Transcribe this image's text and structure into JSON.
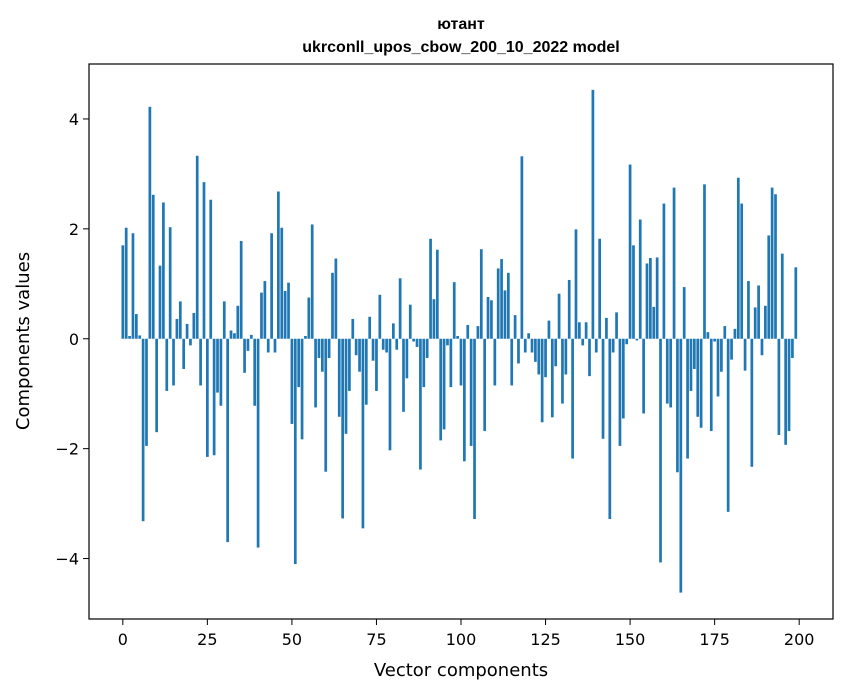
{
  "chart_data": {
    "type": "bar",
    "title": "ютант",
    "subtitle": "ukrconll_upos_cbow_200_10_2022 model",
    "xlabel": "Vector components",
    "ylabel": "Components values",
    "xlim": [
      -10,
      210
    ],
    "ylim": [
      -5.1,
      5
    ],
    "xticks": [
      0,
      25,
      50,
      75,
      100,
      125,
      150,
      175,
      200
    ],
    "yticks": [
      -4,
      -2,
      0,
      2,
      4
    ],
    "ytick_labels": [
      "−4",
      "−2",
      "0",
      "2",
      "4"
    ],
    "grid": false,
    "legend": "none",
    "bar_color": "#1f77b4",
    "x": [
      0,
      1,
      2,
      3,
      4,
      5,
      6,
      7,
      8,
      9,
      10,
      11,
      12,
      13,
      14,
      15,
      16,
      17,
      18,
      19,
      20,
      21,
      22,
      23,
      24,
      25,
      26,
      27,
      28,
      29,
      30,
      31,
      32,
      33,
      34,
      35,
      36,
      37,
      38,
      39,
      40,
      41,
      42,
      43,
      44,
      45,
      46,
      47,
      48,
      49,
      50,
      51,
      52,
      53,
      54,
      55,
      56,
      57,
      58,
      59,
      60,
      61,
      62,
      63,
      64,
      65,
      66,
      67,
      68,
      69,
      70,
      71,
      72,
      73,
      74,
      75,
      76,
      77,
      78,
      79,
      80,
      81,
      82,
      83,
      84,
      85,
      86,
      87,
      88,
      89,
      90,
      91,
      92,
      93,
      94,
      95,
      96,
      97,
      98,
      99,
      100,
      101,
      102,
      103,
      104,
      105,
      106,
      107,
      108,
      109,
      110,
      111,
      112,
      113,
      114,
      115,
      116,
      117,
      118,
      119,
      120,
      121,
      122,
      123,
      124,
      125,
      126,
      127,
      128,
      129,
      130,
      131,
      132,
      133,
      134,
      135,
      136,
      137,
      138,
      139,
      140,
      141,
      142,
      143,
      144,
      145,
      146,
      147,
      148,
      149,
      150,
      151,
      152,
      153,
      154,
      155,
      156,
      157,
      158,
      159,
      160,
      161,
      162,
      163,
      164,
      165,
      166,
      167,
      168,
      169,
      170,
      171,
      172,
      173,
      174,
      175,
      176,
      177,
      178,
      179,
      180,
      181,
      182,
      183,
      184,
      185,
      186,
      187,
      188,
      189,
      190,
      191,
      192,
      193,
      194,
      195,
      196,
      197,
      198,
      199
    ],
    "values": [
      1.7,
      2.02,
      0.05,
      1.92,
      0.45,
      0.06,
      -3.32,
      -1.95,
      4.22,
      2.62,
      -1.7,
      1.33,
      2.48,
      -0.95,
      2.03,
      -0.85,
      0.36,
      0.68,
      -0.55,
      0.27,
      -0.12,
      0.47,
      3.33,
      -0.85,
      2.85,
      -2.15,
      2.53,
      -2.12,
      -0.98,
      -1.22,
      0.68,
      -3.7,
      0.15,
      0.1,
      0.6,
      1.78,
      -0.62,
      -0.22,
      0.07,
      -1.22,
      -3.8,
      0.84,
      1.05,
      -0.25,
      1.92,
      -0.25,
      2.68,
      2.02,
      0.87,
      1.02,
      -1.55,
      -4.1,
      -0.88,
      -1.83,
      0.05,
      0.75,
      2.08,
      -1.25,
      -0.35,
      -0.6,
      -2.42,
      -0.35,
      1.2,
      1.46,
      -1.42,
      -3.27,
      -1.73,
      -0.95,
      0.36,
      -0.3,
      -0.6,
      -3.45,
      -1.2,
      0.4,
      -0.4,
      -0.95,
      0.8,
      -0.2,
      -0.25,
      -2.03,
      0.28,
      -0.2,
      1.1,
      -1.33,
      -0.72,
      0.62,
      -0.05,
      -0.15,
      -2.38,
      -0.88,
      -0.35,
      1.82,
      0.72,
      1.62,
      -1.85,
      -1.65,
      -0.12,
      -0.88,
      1.03,
      0.05,
      -0.85,
      -2.23,
      0.25,
      -1.95,
      -3.28,
      0.23,
      1.63,
      -1.68,
      0.76,
      0.7,
      -0.85,
      1.28,
      1.45,
      0.88,
      1.2,
      -0.85,
      0.43,
      -0.45,
      3.32,
      -0.25,
      0.1,
      -0.25,
      -0.42,
      -0.65,
      -1.52,
      -0.7,
      0.33,
      -1.43,
      -0.5,
      0.82,
      -1.18,
      -0.65,
      1.07,
      -2.18,
      1.99,
      0.3,
      -0.12,
      0.3,
      -0.68,
      4.53,
      -0.25,
      1.82,
      -1.82,
      0.38,
      -3.28,
      -0.25,
      0.48,
      -1.95,
      -1.45,
      -0.1,
      3.17,
      1.7,
      -0.03,
      2.17,
      -1.36,
      1.37,
      1.47,
      0.58,
      1.48,
      -4.07,
      2.46,
      -1.18,
      -1.25,
      2.75,
      -2.43,
      -4.62,
      0.94,
      -2.18,
      -0.95,
      -0.55,
      -1.42,
      -1.62,
      2.81,
      0.12,
      -1.68,
      -0.05,
      -1.05,
      -0.6,
      0.23,
      -3.15,
      -0.38,
      0.18,
      2.93,
      2.46,
      -0.58,
      1.05,
      -2.33,
      0.57,
      0.97,
      -0.3,
      0.6,
      1.88,
      2.75,
      2.63,
      -1.75,
      1.55,
      -1.93,
      -1.68,
      -0.35,
      1.3
    ]
  }
}
